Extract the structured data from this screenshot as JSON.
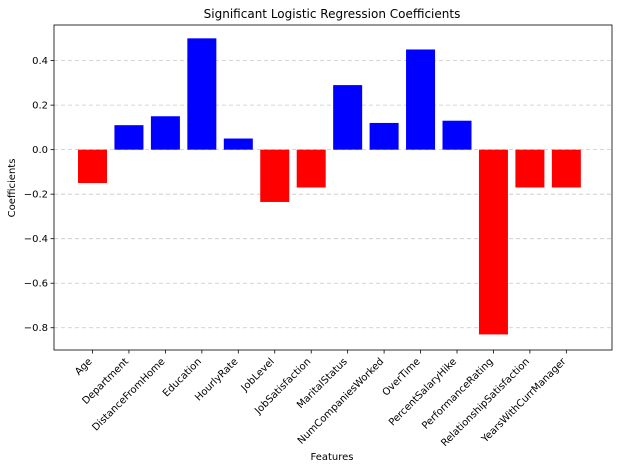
{
  "chart_data": {
    "type": "bar",
    "title": "Significant Logistic Regression Coefficients",
    "xlabel": "Features",
    "ylabel": "Coefficients",
    "categories": [
      "Age",
      "Department",
      "DistanceFromHome",
      "Education",
      "HourlyRate",
      "JobLevel",
      "JobSatisfaction",
      "MaritalStatus",
      "NumCompaniesWorked",
      "OverTime",
      "PercentSalaryHike",
      "PerformanceRating",
      "RelationshipSatisfaction",
      "YearsWithCurrManager"
    ],
    "values": [
      -0.15,
      0.11,
      0.15,
      0.5,
      0.05,
      -0.235,
      -0.17,
      0.29,
      0.12,
      0.45,
      0.13,
      -0.83,
      -0.17,
      -0.17
    ],
    "ylim": [
      -0.9,
      0.56
    ],
    "yticks": [
      -0.8,
      -0.6,
      -0.4,
      -0.2,
      0.0,
      0.2,
      0.4
    ],
    "ytick_labels": [
      "−0.8",
      "−0.6",
      "−0.4",
      "−0.2",
      "0.0",
      "0.2",
      "0.4"
    ],
    "grid": "y-dashed",
    "colors": {
      "positive": "#0000ff",
      "negative": "#ff0000",
      "grid": "#c8c8c8",
      "axis": "#000000"
    }
  }
}
